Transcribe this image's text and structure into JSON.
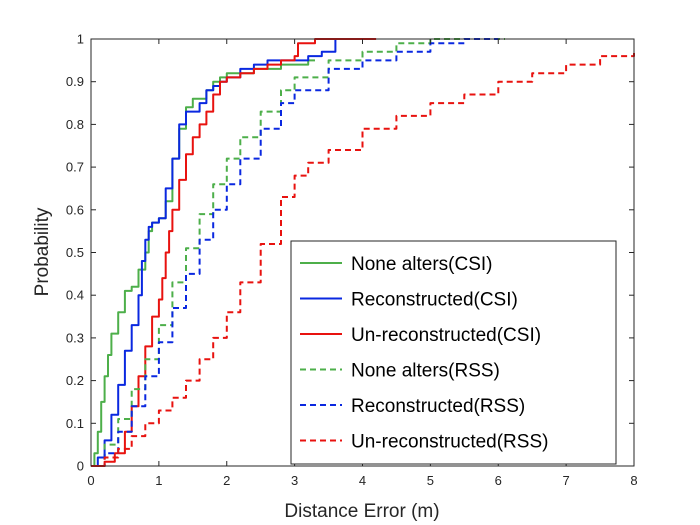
{
  "chart_data": {
    "type": "line",
    "title": "",
    "xlabel": "Distance Error (m)",
    "ylabel": "Probability",
    "xlim": [
      0,
      8
    ],
    "ylim": [
      0,
      1
    ],
    "xticks": [
      "0",
      "1",
      "2",
      "3",
      "4",
      "5",
      "6",
      "7",
      "8"
    ],
    "yticks": [
      "0",
      "0.1",
      "0.2",
      "0.3",
      "0.4",
      "0.5",
      "0.6",
      "0.7",
      "0.8",
      "0.9",
      "1"
    ],
    "grid": false,
    "legend_position": "bottom-right",
    "series": [
      {
        "name": "None alters(CSI)",
        "color": "#4daf4a",
        "style": "solid",
        "x": [
          0,
          0.05,
          0.1,
          0.15,
          0.2,
          0.25,
          0.3,
          0.4,
          0.5,
          0.6,
          0.7,
          0.8,
          0.85,
          0.9,
          1.0,
          1.1,
          1.2,
          1.3,
          1.4,
          1.5,
          1.6,
          1.7,
          1.8,
          1.9,
          2.0,
          2.2,
          2.4,
          2.6,
          2.8,
          3.0,
          3.2,
          3.3
        ],
        "y": [
          0,
          0.03,
          0.08,
          0.15,
          0.21,
          0.26,
          0.31,
          0.36,
          0.41,
          0.42,
          0.46,
          0.5,
          0.55,
          0.57,
          0.58,
          0.62,
          0.72,
          0.79,
          0.84,
          0.86,
          0.86,
          0.88,
          0.9,
          0.91,
          0.92,
          0.92,
          0.93,
          0.93,
          0.94,
          0.94,
          0.95,
          0.95
        ]
      },
      {
        "name": "Reconstructed(CSI)",
        "color": "#0a28e0",
        "style": "solid",
        "x": [
          0,
          0.1,
          0.2,
          0.3,
          0.4,
          0.5,
          0.6,
          0.7,
          0.75,
          0.8,
          0.85,
          0.9,
          1.0,
          1.1,
          1.2,
          1.3,
          1.4,
          1.5,
          1.6,
          1.7,
          1.8,
          1.9,
          2.0,
          2.2,
          2.4,
          2.6,
          2.8,
          3.0,
          3.2,
          3.4,
          3.5,
          3.6,
          3.6
        ],
        "y": [
          0,
          0.02,
          0.06,
          0.12,
          0.19,
          0.27,
          0.33,
          0.4,
          0.48,
          0.53,
          0.56,
          0.57,
          0.58,
          0.65,
          0.72,
          0.8,
          0.83,
          0.83,
          0.85,
          0.88,
          0.89,
          0.9,
          0.91,
          0.93,
          0.94,
          0.95,
          0.95,
          0.95,
          0.96,
          0.97,
          0.97,
          0.97,
          1.0
        ]
      },
      {
        "name": "Un-reconstructed(CSI)",
        "color": "#e8120f",
        "style": "solid",
        "x": [
          0,
          0.2,
          0.35,
          0.5,
          0.6,
          0.7,
          0.8,
          0.9,
          1.0,
          1.05,
          1.1,
          1.15,
          1.2,
          1.3,
          1.4,
          1.5,
          1.6,
          1.7,
          1.8,
          1.9,
          2.0,
          2.2,
          2.4,
          2.6,
          2.8,
          3.0,
          3.05,
          3.3,
          3.6,
          4.0,
          4.2
        ],
        "y": [
          0,
          0.01,
          0.03,
          0.08,
          0.14,
          0.21,
          0.28,
          0.35,
          0.39,
          0.44,
          0.5,
          0.55,
          0.6,
          0.67,
          0.73,
          0.77,
          0.8,
          0.83,
          0.87,
          0.9,
          0.91,
          0.92,
          0.93,
          0.94,
          0.95,
          0.96,
          0.99,
          1.0,
          1.0,
          1.0,
          1.0
        ]
      },
      {
        "name": "None alters(RSS)",
        "color": "#4daf4a",
        "style": "dashed",
        "x": [
          0,
          0.2,
          0.4,
          0.6,
          0.8,
          1.0,
          1.2,
          1.4,
          1.6,
          1.8,
          2.0,
          2.2,
          2.5,
          2.8,
          3.0,
          3.5,
          4.0,
          4.5,
          5.0,
          5.5,
          6.0,
          6.1
        ],
        "y": [
          0,
          0.05,
          0.11,
          0.18,
          0.25,
          0.33,
          0.43,
          0.51,
          0.59,
          0.66,
          0.72,
          0.77,
          0.83,
          0.88,
          0.91,
          0.95,
          0.97,
          0.99,
          1.0,
          1.0,
          1.0,
          1.0
        ]
      },
      {
        "name": "Reconstructed(RSS)",
        "color": "#0a28e0",
        "style": "dashed",
        "x": [
          0,
          0.2,
          0.4,
          0.6,
          0.8,
          1.0,
          1.2,
          1.4,
          1.6,
          1.8,
          2.0,
          2.2,
          2.5,
          2.8,
          3.0,
          3.5,
          4.0,
          4.5,
          5.0,
          5.5,
          6.0
        ],
        "y": [
          0,
          0.03,
          0.08,
          0.14,
          0.21,
          0.29,
          0.37,
          0.45,
          0.53,
          0.6,
          0.66,
          0.72,
          0.79,
          0.85,
          0.88,
          0.93,
          0.95,
          0.97,
          0.99,
          1.0,
          1.0
        ]
      },
      {
        "name": "Un-reconstructed(RSS)",
        "color": "#e8120f",
        "style": "dashed",
        "x": [
          0,
          0.2,
          0.4,
          0.6,
          0.8,
          1.0,
          1.2,
          1.4,
          1.6,
          1.8,
          2.0,
          2.2,
          2.5,
          2.8,
          3.0,
          3.2,
          3.5,
          4.0,
          4.5,
          5.0,
          5.5,
          6.0,
          6.5,
          7.0,
          7.5,
          8.0
        ],
        "y": [
          0,
          0.02,
          0.04,
          0.07,
          0.1,
          0.13,
          0.16,
          0.2,
          0.25,
          0.3,
          0.36,
          0.43,
          0.52,
          0.63,
          0.68,
          0.71,
          0.74,
          0.79,
          0.82,
          0.85,
          0.87,
          0.9,
          0.92,
          0.94,
          0.96,
          0.97
        ]
      }
    ]
  }
}
